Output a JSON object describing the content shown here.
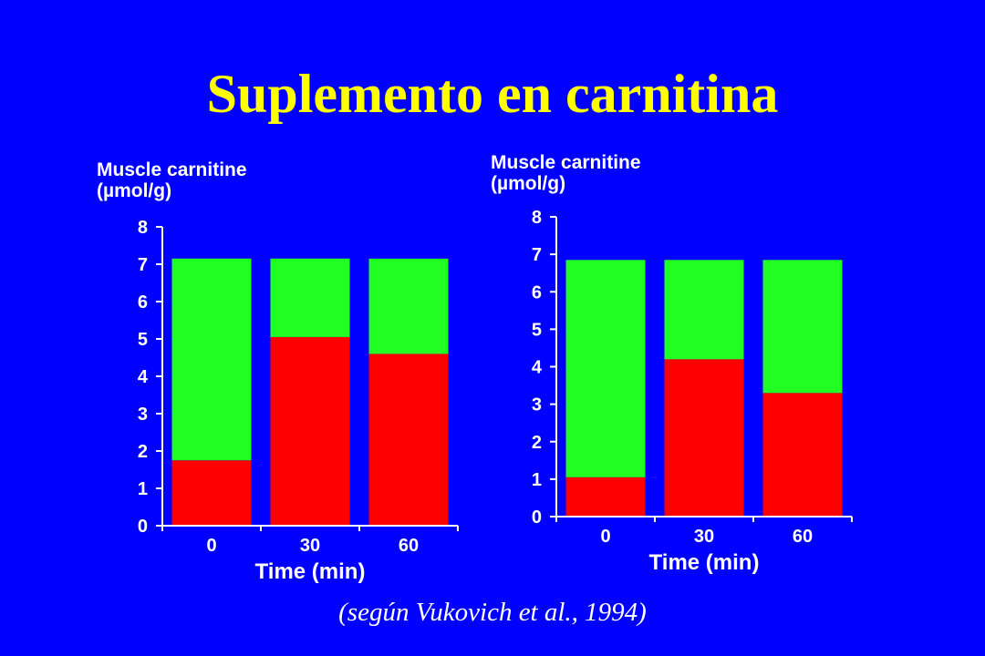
{
  "title": "Suplemento en carnitina",
  "citation": "(según Vukovich et al., 1994)",
  "colors": {
    "background": "#0000ff",
    "title": "#ffff00",
    "lower_segment": "#ff0000",
    "upper_segment": "#22ff22",
    "text": "#ffffff"
  },
  "chart_data": [
    {
      "type": "bar",
      "stacked": true,
      "ylabel_line1": "Muscle carnitine",
      "ylabel_line2": "(µmol/g)",
      "xlabel": "Time (min)",
      "categories": [
        "0",
        "30",
        "60"
      ],
      "yticks": [
        "0",
        "1",
        "2",
        "3",
        "4",
        "5",
        "6",
        "7",
        "8"
      ],
      "ylim": [
        0,
        8
      ],
      "grid": false,
      "series": [
        {
          "color": "#ff0000",
          "values": [
            1.75,
            5.05,
            4.6
          ]
        },
        {
          "color": "#22ff22",
          "values": [
            5.4,
            2.1,
            2.55
          ]
        }
      ]
    },
    {
      "type": "bar",
      "stacked": true,
      "ylabel_line1": "Muscle carnitine",
      "ylabel_line2": "(µmol/g)",
      "xlabel": "Time (min)",
      "categories": [
        "0",
        "30",
        "60"
      ],
      "yticks": [
        "0",
        "1",
        "2",
        "3",
        "4",
        "5",
        "6",
        "7",
        "8"
      ],
      "ylim": [
        0,
        8
      ],
      "grid": false,
      "series": [
        {
          "color": "#ff0000",
          "values": [
            1.05,
            4.2,
            3.3
          ]
        },
        {
          "color": "#22ff22",
          "values": [
            5.8,
            2.65,
            3.55
          ]
        }
      ]
    }
  ]
}
